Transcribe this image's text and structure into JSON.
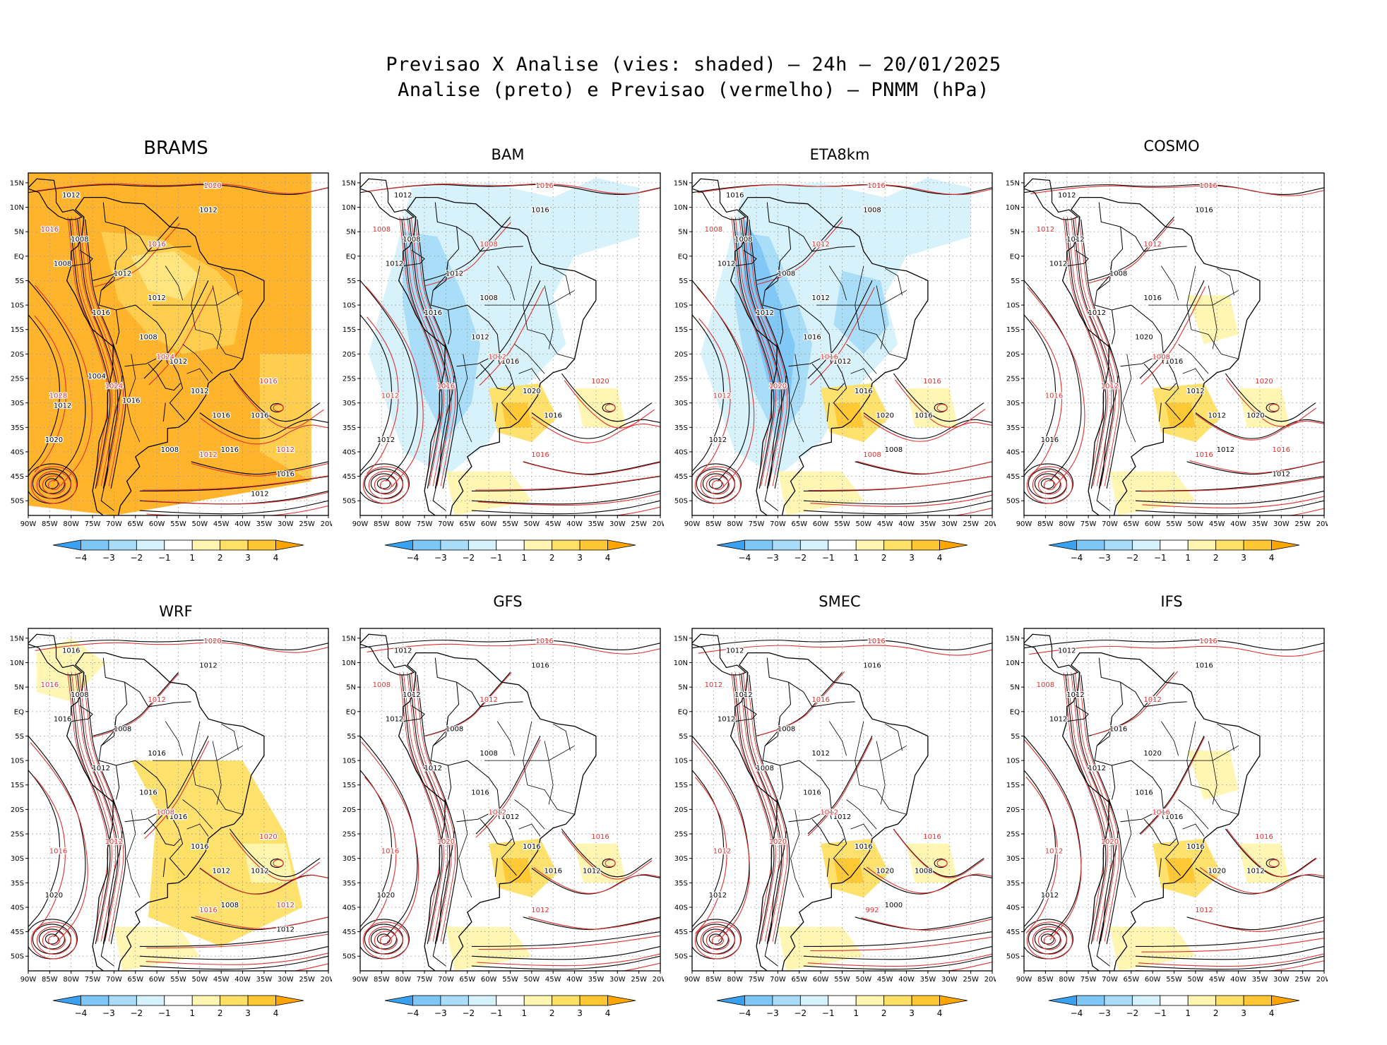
{
  "title": {
    "line1": "Previsao X Analise (vies: shaded) – 24h – 20/01/2025",
    "line2": "Analise (preto) e Previsao (vermelho) – PNMM (hPa)"
  },
  "axes": {
    "lat_labels": [
      "15N",
      "10N",
      "5N",
      "EQ",
      "5S",
      "10S",
      "15S",
      "20S",
      "25S",
      "30S",
      "35S",
      "40S",
      "45S",
      "50S"
    ],
    "lon_labels": [
      "90W",
      "85W",
      "80W",
      "75W",
      "70W",
      "65W",
      "60W",
      "55W",
      "50W",
      "45W",
      "40W",
      "35W",
      "30W",
      "25W",
      "20W"
    ]
  },
  "colorbar": {
    "labels": [
      "−4",
      "−3",
      "−2",
      "−1",
      "1",
      "2",
      "3",
      "4"
    ],
    "colors": [
      "#3aa0f0",
      "#7ec6f5",
      "#a8dcf8",
      "#d5f1fb",
      "#ffffff",
      "#fff5b0",
      "#ffe066",
      "#ffc733",
      "#ffa500"
    ]
  },
  "colors": {
    "analysis_contour": "#000000",
    "forecast_contour": "#e03030",
    "coast": "#000000",
    "grid": "#9a9a9a"
  },
  "panels": [
    {
      "id": "brams",
      "title": "BRAMS",
      "labels_black": [
        "1012",
        "1012",
        "1008",
        "1008",
        "1012",
        "1012",
        "1016",
        "1008",
        "1012",
        "1012",
        "1016",
        "1020",
        "1016",
        "1016",
        "1016",
        "1012",
        "1016",
        "1008",
        "1012",
        "1004"
      ],
      "labels_red": [
        "1020",
        "1016",
        "1016",
        "1024",
        "1028",
        "1024",
        "1016",
        "1012",
        "1012"
      ]
    },
    {
      "id": "bam",
      "title": "BAM",
      "labels_black": [
        "1012",
        "1016",
        "1012",
        "1008",
        "1012",
        "1008",
        "1016",
        "1012",
        "1016",
        "1020",
        "1016",
        "1012"
      ],
      "labels_red": [
        "1016",
        "1008",
        "1008",
        "1012",
        "1012",
        "1016",
        "1020",
        "1016"
      ]
    },
    {
      "id": "eta8km",
      "title": "ETA8km",
      "labels_black": [
        "1016",
        "1008",
        "1012",
        "1008",
        "1008",
        "1012",
        "1012",
        "1016",
        "1012",
        "1016",
        "1020",
        "1012",
        "1016",
        "1008"
      ],
      "labels_red": [
        "1016",
        "1008",
        "1012",
        "1016",
        "1012",
        "1020",
        "1016",
        "1008"
      ]
    },
    {
      "id": "cosmo",
      "title": "COSMO",
      "labels_black": [
        "1012",
        "1016",
        "1012",
        "1012",
        "1008",
        "1016",
        "1012",
        "1020",
        "1016",
        "1012",
        "1012",
        "1016",
        "1020",
        "1012",
        "1012"
      ],
      "labels_red": [
        "1016",
        "1012",
        "1012",
        "1008",
        "1016",
        "1012",
        "1020",
        "1016",
        "1016"
      ]
    },
    {
      "id": "wrf",
      "title": "WRF",
      "labels_black": [
        "1016",
        "1012",
        "1016",
        "1008",
        "1008",
        "1016",
        "1012",
        "1016",
        "1016",
        "1016",
        "1012",
        "1020",
        "1012",
        "1008",
        "1012"
      ],
      "labels_red": [
        "1020",
        "1016",
        "1012",
        "1008",
        "1016",
        "1012",
        "1020",
        "1016",
        "1012"
      ]
    },
    {
      "id": "gfs",
      "title": "GFS",
      "labels_black": [
        "1012",
        "1016",
        "1012",
        "1012",
        "1008",
        "1008",
        "1012",
        "1016",
        "1012",
        "1016",
        "1016",
        "1020",
        "1012"
      ],
      "labels_red": [
        "1016",
        "1008",
        "1012",
        "1012",
        "1016",
        "1020",
        "1016",
        "1012"
      ]
    },
    {
      "id": "smec",
      "title": "SMEC",
      "labels_black": [
        "1012",
        "1016",
        "1012",
        "1012",
        "1008",
        "1012",
        "1008",
        "1016",
        "1012",
        "1016",
        "1020",
        "1012",
        "1008",
        "1000"
      ],
      "labels_red": [
        "1016",
        "1012",
        "1016",
        "1012",
        "1012",
        "1020",
        "1016",
        "992"
      ]
    },
    {
      "id": "ifs",
      "title": "IFS",
      "labels_black": [
        "1012",
        "1016",
        "1012",
        "1012",
        "1016",
        "1020",
        "1012",
        "1016",
        "1016",
        "1016",
        "1020",
        "1012",
        "1012"
      ],
      "labels_red": [
        "1016",
        "1008",
        "1012",
        "1016",
        "1012",
        "1020",
        "1016",
        "1012"
      ]
    }
  ]
}
